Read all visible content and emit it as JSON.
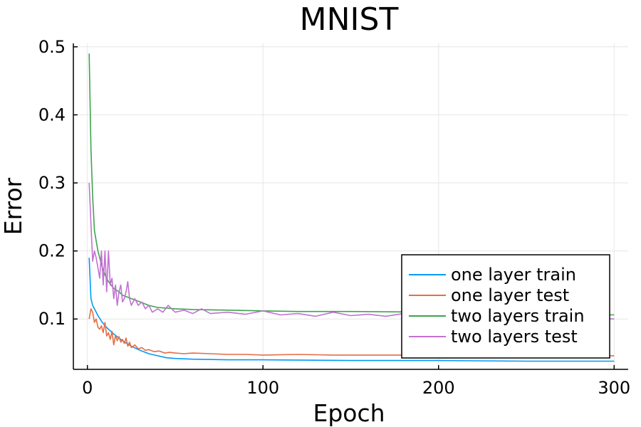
{
  "chart_data": {
    "type": "line",
    "title": "MNIST",
    "xlabel": "Epoch",
    "ylabel": "Error",
    "xlim": [
      -8,
      308
    ],
    "ylim": [
      0.026,
      0.505
    ],
    "xticks": [
      0,
      100,
      200,
      300
    ],
    "yticks": [
      0.1,
      0.2,
      0.3,
      0.4,
      0.5
    ],
    "grid": true,
    "legend_position": "bottom-right",
    "series": [
      {
        "name": "one layer train",
        "color": "#009af9",
        "x": [
          1,
          2,
          3,
          4,
          6,
          8,
          10,
          12,
          15,
          18,
          20,
          25,
          30,
          35,
          40,
          45,
          50,
          60,
          80,
          100,
          150,
          200,
          250,
          300
        ],
        "y": [
          0.19,
          0.13,
          0.12,
          0.115,
          0.105,
          0.097,
          0.09,
          0.085,
          0.078,
          0.072,
          0.068,
          0.06,
          0.054,
          0.049,
          0.046,
          0.043,
          0.042,
          0.041,
          0.04,
          0.04,
          0.039,
          0.039,
          0.038,
          0.038
        ]
      },
      {
        "name": "one layer test",
        "color": "#e26f46",
        "x": [
          1,
          2,
          3,
          4,
          5,
          6,
          7,
          8,
          9,
          10,
          11,
          12,
          13,
          14,
          15,
          16,
          17,
          18,
          19,
          20,
          21,
          22,
          23,
          24,
          25,
          27,
          29,
          31,
          33,
          35,
          38,
          41,
          44,
          47,
          50,
          55,
          60,
          70,
          80,
          90,
          100,
          120,
          140,
          160,
          180,
          200,
          220,
          240,
          260,
          280,
          300
        ],
        "y": [
          0.1,
          0.115,
          0.11,
          0.095,
          0.1,
          0.088,
          0.085,
          0.09,
          0.08,
          0.095,
          0.075,
          0.08,
          0.07,
          0.082,
          0.062,
          0.076,
          0.068,
          0.074,
          0.066,
          0.07,
          0.064,
          0.072,
          0.06,
          0.066,
          0.058,
          0.062,
          0.056,
          0.058,
          0.054,
          0.055,
          0.052,
          0.053,
          0.05,
          0.051,
          0.05,
          0.049,
          0.05,
          0.049,
          0.048,
          0.048,
          0.047,
          0.048,
          0.047,
          0.047,
          0.047,
          0.047,
          0.047,
          0.046,
          0.046,
          0.046,
          0.046
        ]
      },
      {
        "name": "two layers train",
        "color": "#3da44d",
        "x": [
          1,
          2,
          3,
          4,
          5,
          6,
          8,
          10,
          12,
          15,
          18,
          20,
          25,
          30,
          35,
          40,
          50,
          60,
          80,
          100,
          120,
          150,
          200,
          250,
          300
        ],
        "y": [
          0.49,
          0.35,
          0.28,
          0.23,
          0.215,
          0.2,
          0.18,
          0.165,
          0.155,
          0.145,
          0.14,
          0.135,
          0.13,
          0.125,
          0.12,
          0.117,
          0.115,
          0.114,
          0.113,
          0.112,
          0.111,
          0.111,
          0.11,
          0.108,
          0.106
        ]
      },
      {
        "name": "two layers test",
        "color": "#c271d2",
        "x": [
          1,
          2,
          3,
          4,
          5,
          6,
          7,
          8,
          9,
          10,
          11,
          12,
          13,
          14,
          15,
          16,
          17,
          18,
          19,
          20,
          21,
          22,
          23,
          24,
          25,
          27,
          29,
          31,
          33,
          35,
          37,
          40,
          43,
          46,
          50,
          55,
          60,
          65,
          70,
          80,
          90,
          100,
          110,
          120,
          130,
          140,
          150,
          160,
          170,
          180,
          190,
          200,
          210,
          220,
          230,
          240,
          250,
          260,
          270,
          280,
          290,
          300
        ],
        "y": [
          0.3,
          0.24,
          0.185,
          0.2,
          0.19,
          0.175,
          0.16,
          0.2,
          0.15,
          0.2,
          0.14,
          0.2,
          0.15,
          0.16,
          0.13,
          0.15,
          0.12,
          0.14,
          0.15,
          0.125,
          0.13,
          0.14,
          0.155,
          0.13,
          0.12,
          0.13,
          0.12,
          0.125,
          0.115,
          0.12,
          0.11,
          0.115,
          0.11,
          0.12,
          0.11,
          0.113,
          0.108,
          0.115,
          0.108,
          0.11,
          0.107,
          0.112,
          0.106,
          0.108,
          0.104,
          0.11,
          0.105,
          0.107,
          0.104,
          0.108,
          0.103,
          0.106,
          0.104,
          0.105,
          0.102,
          0.104,
          0.103,
          0.104,
          0.102,
          0.103,
          0.101,
          0.1
        ]
      }
    ]
  }
}
